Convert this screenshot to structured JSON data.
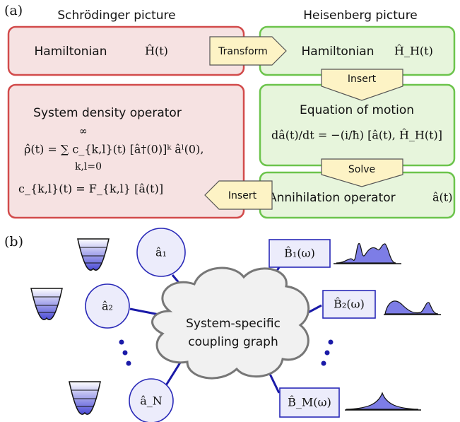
{
  "panel_a": {
    "label": "(a)",
    "left_title": "Schrödinger picture",
    "right_title": "Heisenberg picture",
    "schrodinger_hamiltonian": {
      "label": "Hamiltonian",
      "symbol": "Ĥ(t)"
    },
    "heisenberg_hamiltonian": {
      "label": "Hamiltonian",
      "symbol": "Ĥ_H(t)"
    },
    "density_operator": {
      "title": "System density operator",
      "formula": "ρ̂(t) = ∑ c_{k,l}(t) [â†(0)]ᵏ âˡ(0),",
      "sum_upper": "∞",
      "sum_lower": "k,l=0",
      "coefficient": "c_{k,l}(t) = F_{k,l} [â(t)]"
    },
    "equation_of_motion": {
      "title": "Equation of motion",
      "formula": "dâ(t)/dt = −(i/ħ) [â(t), Ĥ_H(t)]"
    },
    "annihilation": {
      "label": "Annihilation operator",
      "symbol": "â(t)"
    },
    "arrows": {
      "transform": "Transform",
      "insert_down": "Insert",
      "solve": "Solve",
      "insert_left": "Insert"
    }
  },
  "panel_b": {
    "label": "(b)",
    "graph_label": [
      "System-specific",
      "coupling graph"
    ],
    "modes": [
      "â₁",
      "â₂",
      "â_N"
    ],
    "baths": [
      "B̂₁(ω)",
      "B̂₂(ω)",
      "B̂_M(ω)"
    ]
  }
}
